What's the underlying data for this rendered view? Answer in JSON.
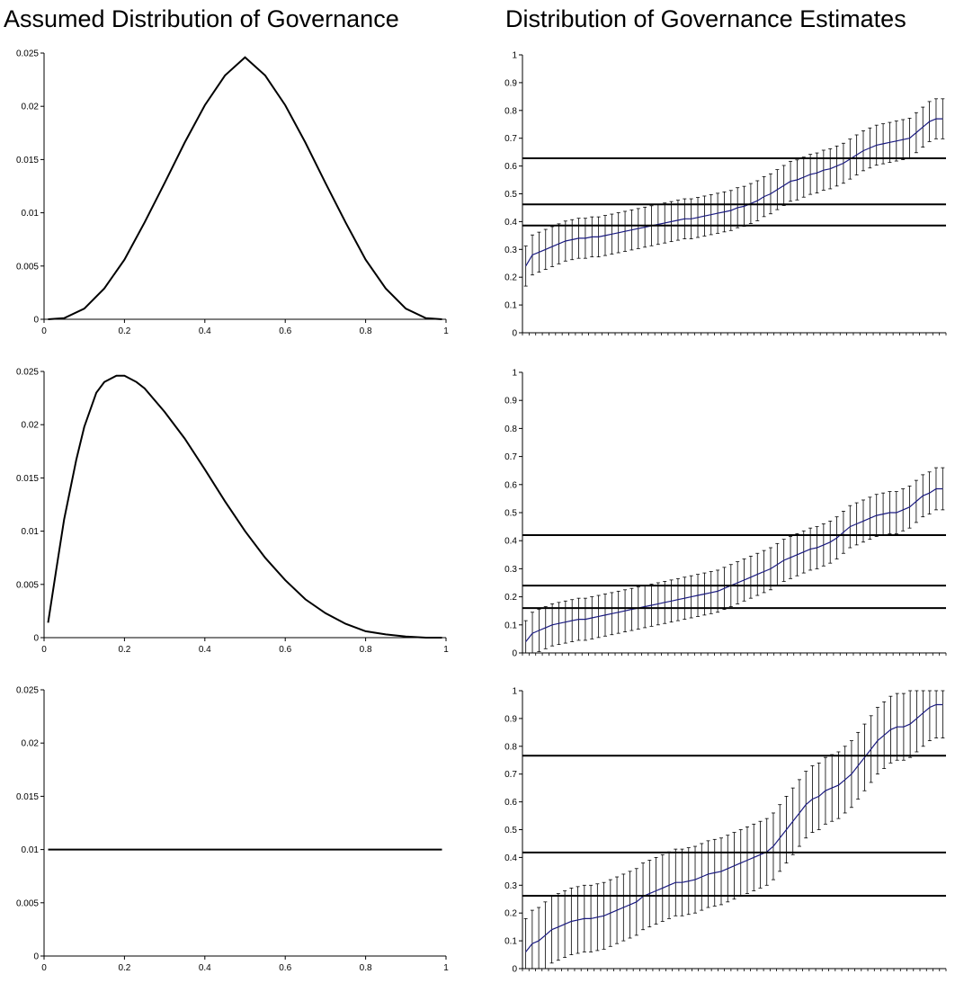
{
  "titles": {
    "left": "Assumed Distribution of Governance",
    "right": "Distribution of Governance Estimates"
  },
  "colors": {
    "curve": "#000000",
    "estimate_line": "#1a1a80",
    "error_bar": "#000000",
    "hline": "#000000"
  },
  "chart_data": [
    {
      "type": "line",
      "panel": "assumed-1",
      "xlim": [
        0,
        1
      ],
      "ylim": [
        0,
        0.025
      ],
      "xticks": [
        "0",
        "0.2",
        "0.4",
        "0.6",
        "0.8",
        "1"
      ],
      "yticks": [
        "0",
        "0.005",
        "0.01",
        "0.015",
        "0.02",
        "0.025"
      ],
      "series": [
        {
          "x": [
            0.01,
            0.05,
            0.1,
            0.15,
            0.2,
            0.25,
            0.3,
            0.35,
            0.4,
            0.45,
            0.5,
            0.55,
            0.6,
            0.65,
            0.7,
            0.75,
            0.8,
            0.85,
            0.9,
            0.95,
            0.99
          ],
          "y": [
            0.0,
            0.0001,
            0.001,
            0.0029,
            0.0056,
            0.0091,
            0.0128,
            0.0166,
            0.0201,
            0.0229,
            0.0246,
            0.0229,
            0.0201,
            0.0166,
            0.0128,
            0.0091,
            0.0056,
            0.0029,
            0.001,
            0.0001,
            0.0
          ]
        }
      ]
    },
    {
      "type": "line",
      "panel": "assumed-2",
      "xlim": [
        0,
        1
      ],
      "ylim": [
        0,
        0.025
      ],
      "xticks": [
        "0",
        "0.2",
        "0.4",
        "0.6",
        "0.8",
        "1"
      ],
      "yticks": [
        "0",
        "0.005",
        "0.01",
        "0.015",
        "0.02",
        "0.025"
      ],
      "series": [
        {
          "x": [
            0.01,
            0.03,
            0.05,
            0.08,
            0.1,
            0.13,
            0.15,
            0.18,
            0.2,
            0.23,
            0.25,
            0.3,
            0.35,
            0.4,
            0.45,
            0.5,
            0.55,
            0.6,
            0.65,
            0.7,
            0.75,
            0.8,
            0.85,
            0.9,
            0.95,
            0.99
          ],
          "y": [
            0.0014,
            0.0063,
            0.0111,
            0.0167,
            0.0198,
            0.023,
            0.024,
            0.0246,
            0.0246,
            0.024,
            0.0234,
            0.0212,
            0.0187,
            0.0158,
            0.0128,
            0.01,
            0.0075,
            0.0054,
            0.0036,
            0.0023,
            0.0013,
            0.0006,
            0.0003,
            0.0001,
            0.0,
            0.0
          ]
        }
      ]
    },
    {
      "type": "line",
      "panel": "assumed-3",
      "xlim": [
        0,
        1
      ],
      "ylim": [
        0,
        0.025
      ],
      "xticks": [
        "0",
        "0.2",
        "0.4",
        "0.6",
        "0.8",
        "1"
      ],
      "yticks": [
        "0",
        "0.005",
        "0.01",
        "0.015",
        "0.02",
        "0.025"
      ],
      "series": [
        {
          "x": [
            0.01,
            0.99
          ],
          "y": [
            0.01,
            0.01
          ]
        }
      ]
    },
    {
      "type": "line",
      "panel": "estimates-1",
      "ylim": [
        0,
        1
      ],
      "yticks": [
        "0",
        "0.1",
        "0.2",
        "0.3",
        "0.4",
        "0.5",
        "0.6",
        "0.7",
        "0.8",
        "0.9",
        "1"
      ],
      "hlines": [
        0.386,
        0.462,
        0.628
      ],
      "error_halfwidth": 0.072,
      "series": [
        {
          "values": [
            0.24,
            0.28,
            0.29,
            0.3,
            0.31,
            0.32,
            0.33,
            0.335,
            0.34,
            0.34,
            0.345,
            0.345,
            0.35,
            0.355,
            0.36,
            0.365,
            0.37,
            0.375,
            0.38,
            0.385,
            0.39,
            0.395,
            0.4,
            0.405,
            0.41,
            0.41,
            0.415,
            0.42,
            0.425,
            0.43,
            0.435,
            0.44,
            0.45,
            0.455,
            0.465,
            0.475,
            0.49,
            0.5,
            0.515,
            0.53,
            0.545,
            0.55,
            0.56,
            0.57,
            0.575,
            0.585,
            0.59,
            0.6,
            0.61,
            0.625,
            0.64,
            0.655,
            0.665,
            0.675,
            0.68,
            0.685,
            0.69,
            0.695,
            0.7,
            0.72,
            0.74,
            0.76,
            0.77,
            0.77
          ]
        }
      ]
    },
    {
      "type": "line",
      "panel": "estimates-2",
      "ylim": [
        0,
        1
      ],
      "yticks": [
        "0",
        "0.1",
        "0.2",
        "0.3",
        "0.4",
        "0.5",
        "0.6",
        "0.7",
        "0.8",
        "0.9",
        "1"
      ],
      "hlines": [
        0.16,
        0.24,
        0.42
      ],
      "error_halfwidth": 0.075,
      "series": [
        {
          "values": [
            0.04,
            0.07,
            0.08,
            0.09,
            0.1,
            0.105,
            0.11,
            0.115,
            0.12,
            0.12,
            0.125,
            0.13,
            0.135,
            0.14,
            0.145,
            0.15,
            0.155,
            0.16,
            0.165,
            0.17,
            0.175,
            0.18,
            0.185,
            0.19,
            0.195,
            0.2,
            0.205,
            0.21,
            0.215,
            0.22,
            0.23,
            0.24,
            0.25,
            0.26,
            0.27,
            0.28,
            0.29,
            0.3,
            0.315,
            0.33,
            0.34,
            0.35,
            0.36,
            0.37,
            0.375,
            0.385,
            0.395,
            0.41,
            0.43,
            0.45,
            0.46,
            0.47,
            0.48,
            0.49,
            0.495,
            0.5,
            0.5,
            0.51,
            0.52,
            0.54,
            0.56,
            0.57,
            0.585,
            0.585
          ]
        }
      ]
    },
    {
      "type": "line",
      "panel": "estimates-3",
      "ylim": [
        0,
        1
      ],
      "yticks": [
        "0",
        "0.1",
        "0.2",
        "0.3",
        "0.4",
        "0.5",
        "0.6",
        "0.7",
        "0.8",
        "0.9",
        "1"
      ],
      "hlines": [
        0.262,
        0.418,
        0.766
      ],
      "error_halfwidth": 0.12,
      "series": [
        {
          "values": [
            0.06,
            0.09,
            0.1,
            0.12,
            0.14,
            0.15,
            0.16,
            0.17,
            0.175,
            0.18,
            0.18,
            0.185,
            0.19,
            0.2,
            0.21,
            0.22,
            0.23,
            0.24,
            0.26,
            0.27,
            0.28,
            0.29,
            0.3,
            0.31,
            0.31,
            0.315,
            0.32,
            0.33,
            0.34,
            0.345,
            0.35,
            0.36,
            0.37,
            0.38,
            0.39,
            0.4,
            0.41,
            0.42,
            0.44,
            0.47,
            0.5,
            0.53,
            0.56,
            0.59,
            0.61,
            0.62,
            0.64,
            0.65,
            0.66,
            0.68,
            0.7,
            0.73,
            0.76,
            0.79,
            0.82,
            0.84,
            0.86,
            0.87,
            0.87,
            0.88,
            0.9,
            0.92,
            0.94,
            0.95,
            0.95
          ]
        }
      ]
    }
  ]
}
